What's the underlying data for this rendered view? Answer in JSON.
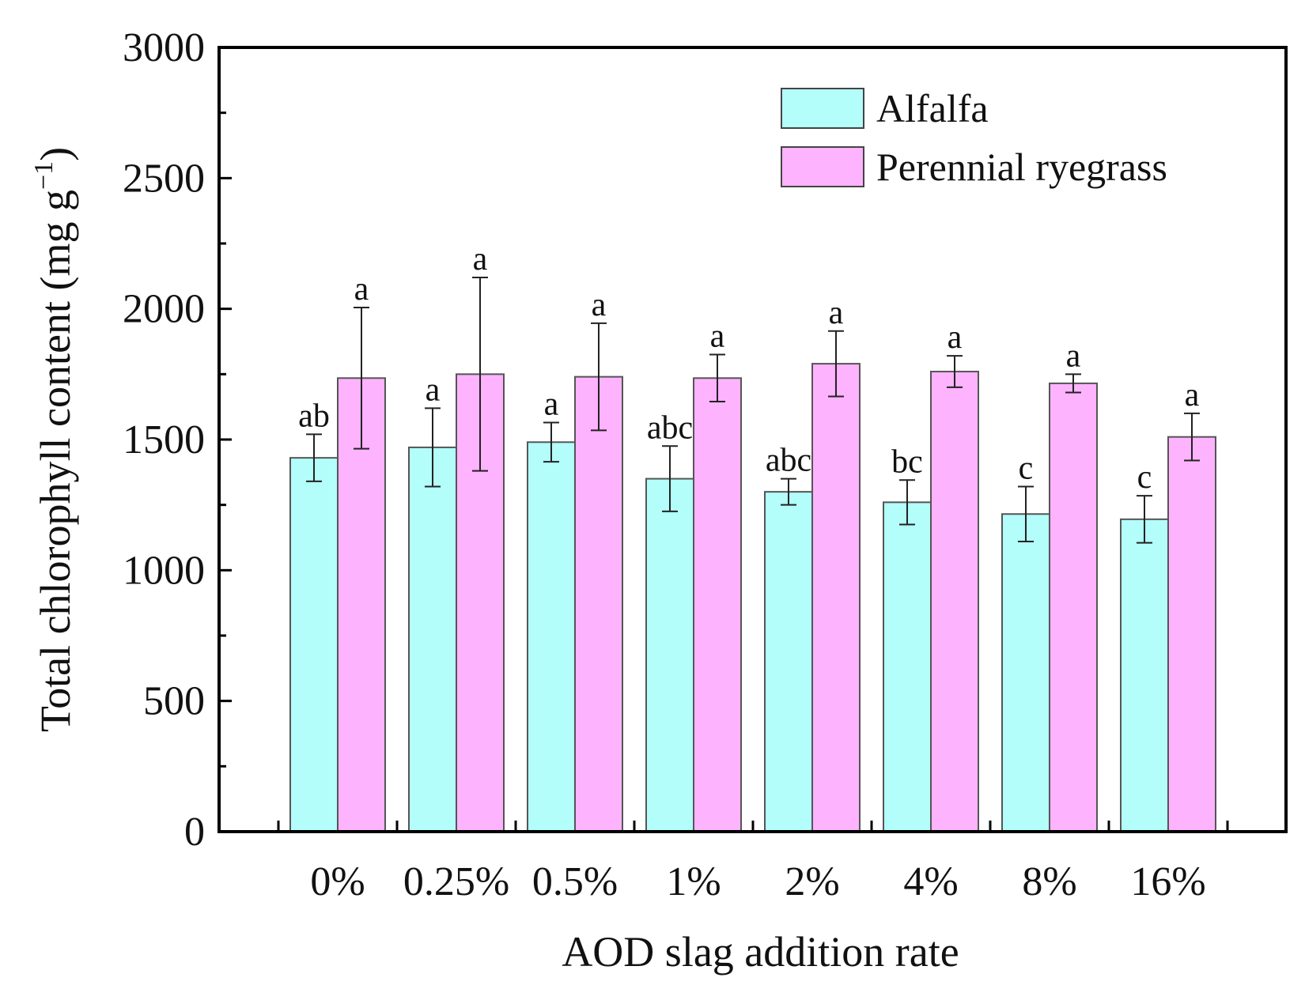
{
  "chart_data": {
    "type": "bar",
    "title": "",
    "xlabel": "AOD slag addition rate",
    "ylabel": "Total chlorophyll content (mg g",
    "ylabel_sup": "−1",
    "ylabel_end": ")",
    "ylim": [
      0,
      3000
    ],
    "yticks": [
      0,
      500,
      1000,
      1500,
      2000,
      2500,
      3000
    ],
    "grid": false,
    "legend_position": "top-right",
    "categories": [
      "0%",
      "0.25%",
      "0.5%",
      "1%",
      "2%",
      "4%",
      "8%",
      "16%"
    ],
    "series": [
      {
        "name": "Alfalfa",
        "color": "#b3fdfb",
        "values": [
          1430,
          1470,
          1490,
          1350,
          1300,
          1260,
          1215,
          1195
        ],
        "errors": [
          90,
          150,
          75,
          125,
          50,
          85,
          105,
          90
        ],
        "labels": [
          "ab",
          "a",
          "a",
          "abc",
          "abc",
          "bc",
          "c",
          "c"
        ]
      },
      {
        "name": "Perennial ryegrass",
        "color": "#fdb3fd",
        "values": [
          1735,
          1750,
          1740,
          1735,
          1790,
          1760,
          1715,
          1510
        ],
        "errors": [
          270,
          370,
          205,
          90,
          125,
          60,
          35,
          90
        ],
        "labels": [
          "a",
          "a",
          "a",
          "a",
          "a",
          "a",
          "a",
          "a"
        ]
      }
    ]
  }
}
